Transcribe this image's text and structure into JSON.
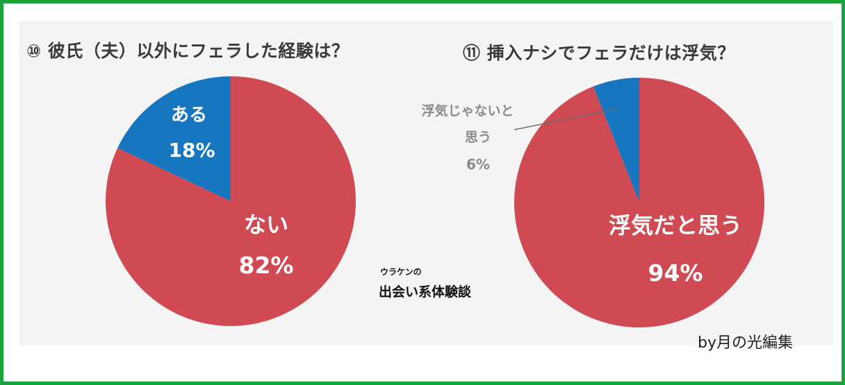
{
  "chart_data": [
    {
      "type": "pie",
      "title": "⑩ 彼氏（夫）以外にフェラした経験は？",
      "slices": [
        {
          "label": "ある",
          "value": 18,
          "value_text": "18%",
          "color": "#1677c0"
        },
        {
          "label": "ない",
          "value": 82,
          "value_text": "82%",
          "color": "#cf4a52"
        }
      ]
    },
    {
      "type": "pie",
      "title": "⑪ 挿入ナシでフェラだけは浮気？",
      "slices": [
        {
          "label": "浮気じゃないと思う",
          "label_lines": [
            "浮気じゃないと",
            "思う"
          ],
          "value": 6,
          "value_text": "6%",
          "color": "#1677c0"
        },
        {
          "label": "浮気だと思う",
          "value": 94,
          "value_text": "94%",
          "color": "#cf4a52"
        }
      ]
    }
  ],
  "logo": {
    "small": "ウラケンの",
    "big": "出会い系体験談"
  },
  "credit": "by月の光編集",
  "colors": {
    "frame": "#1aa23c",
    "panel": "#f4f4f4",
    "outside_label": "#8a8a8a"
  }
}
